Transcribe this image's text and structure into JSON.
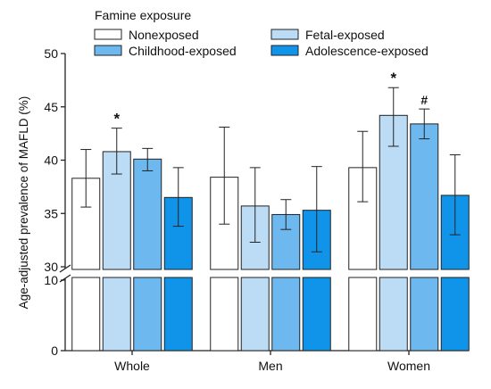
{
  "chart_data": {
    "type": "bar",
    "title": "",
    "xlabel": "",
    "ylabel": "Age-adjusted prevalence of MAFLD (%)",
    "legend": {
      "title": "Famine exposure",
      "placement": "top"
    },
    "categories": [
      "Whole",
      "Men",
      "Women"
    ],
    "ylim_lower": [
      0,
      10
    ],
    "ylim_upper": [
      30,
      50
    ],
    "yticks_lower": [
      "0",
      "10"
    ],
    "yticks_upper": [
      "30",
      "35",
      "40",
      "45",
      "50"
    ],
    "axis_break": true,
    "grid": false,
    "series": [
      {
        "name": "Nonexposed",
        "color": "#ffffff",
        "values": [
          38.3,
          38.4,
          39.3
        ],
        "err_low": [
          35.6,
          34.0,
          36.1
        ],
        "err_high": [
          41.0,
          43.1,
          42.7
        ],
        "annotations": [
          "",
          "",
          ""
        ]
      },
      {
        "name": "Fetal-exposed",
        "color": "#bcdcf5",
        "values": [
          40.8,
          35.7,
          44.2
        ],
        "err_low": [
          38.7,
          32.3,
          41.3
        ],
        "err_high": [
          43.0,
          39.3,
          46.8
        ],
        "annotations": [
          "*",
          "",
          "*"
        ]
      },
      {
        "name": "Childhood-exposed",
        "color": "#6db8ef",
        "values": [
          40.1,
          34.9,
          43.4
        ],
        "err_low": [
          39.0,
          33.5,
          42.0
        ],
        "err_high": [
          41.1,
          36.3,
          44.8
        ],
        "annotations": [
          "",
          "",
          "#"
        ]
      },
      {
        "name": "Adolescence-exposed",
        "color": "#0f94ea",
        "values": [
          36.5,
          35.3,
          36.7
        ],
        "err_low": [
          33.8,
          31.4,
          33.0
        ],
        "err_high": [
          39.3,
          39.4,
          40.5
        ],
        "annotations": [
          "",
          "",
          ""
        ]
      }
    ]
  }
}
